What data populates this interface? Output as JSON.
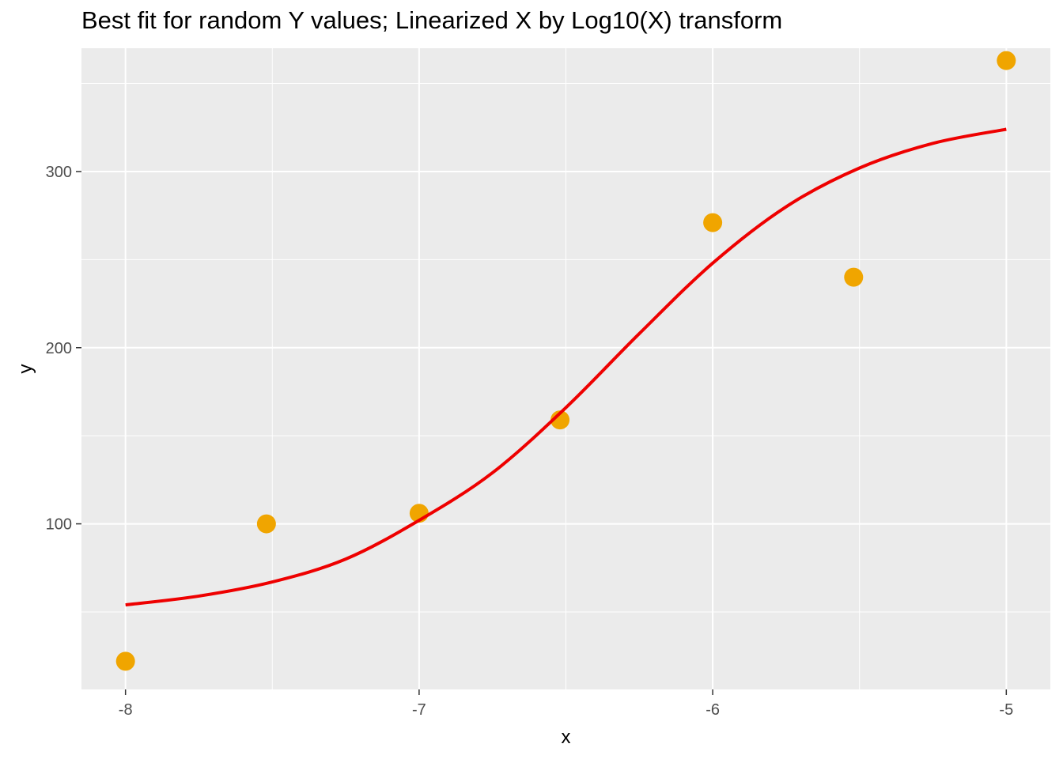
{
  "chart_data": {
    "type": "scatter",
    "title": "Best fit for random Y values; Linearized X by Log10(X) transform",
    "xlabel": "x",
    "ylabel": "y",
    "xlim": [
      -8.15,
      -4.85
    ],
    "ylim": [
      6,
      370
    ],
    "x_ticks": [
      -8,
      -7,
      -6,
      -5
    ],
    "x_tick_labels": [
      "-8",
      "-7",
      "-6",
      "-5"
    ],
    "y_ticks": [
      100,
      200,
      300
    ],
    "y_tick_labels": [
      "100",
      "200",
      "300"
    ],
    "grid": true,
    "points": {
      "color": "#f0a500",
      "x": [
        -8.0,
        -7.52,
        -7.0,
        -6.52,
        -6.0,
        -5.52,
        -5.0
      ],
      "y": [
        22,
        100,
        106,
        159,
        271,
        240,
        363
      ]
    },
    "fit_line": {
      "color": "#ee0000",
      "x": [
        -8.0,
        -7.75,
        -7.5,
        -7.25,
        -7.0,
        -6.75,
        -6.5,
        -6.25,
        -6.0,
        -5.75,
        -5.5,
        -5.25,
        -5.0
      ],
      "y": [
        54,
        59,
        67,
        80,
        102,
        129,
        166,
        208,
        248,
        280,
        302,
        316,
        324
      ]
    },
    "panel_bg": "#ebebeb",
    "grid_color": "#ffffff"
  }
}
